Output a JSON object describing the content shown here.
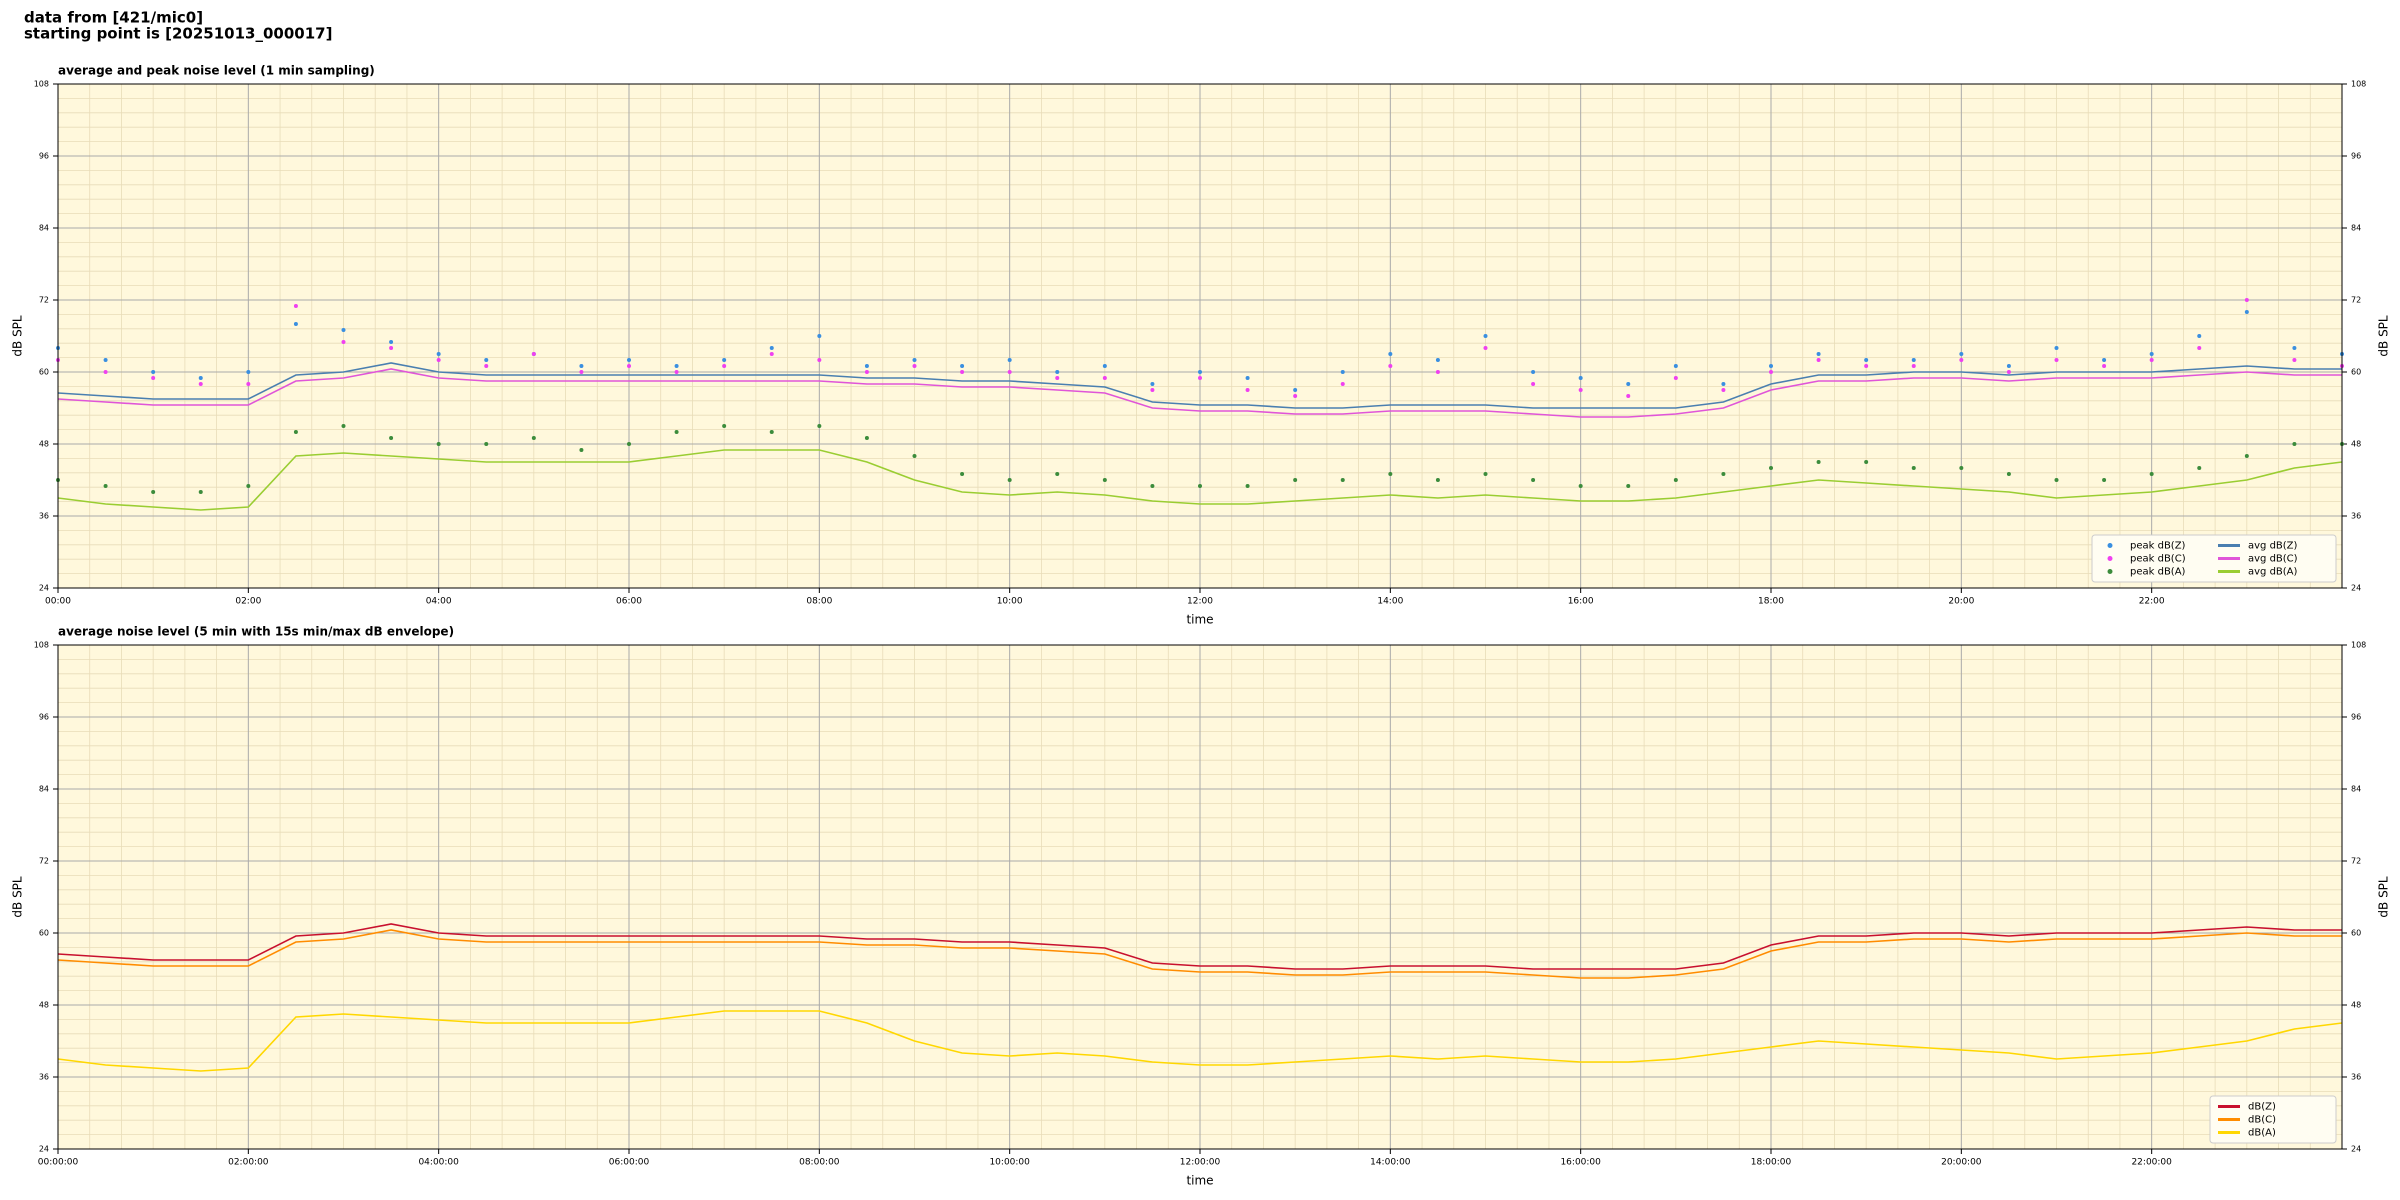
{
  "header": {
    "line1": "data from [421/mic0]",
    "line2": "starting point is [20251013_000017]"
  },
  "chart_data": [
    {
      "type": "line",
      "title": "average and peak noise level (1 min sampling)",
      "xlabel": "time",
      "ylabel": "dB SPL",
      "ylabel_right": "dB SPL",
      "xlim": [
        0,
        24
      ],
      "ylim": [
        24,
        108
      ],
      "yticks": [
        24,
        36,
        48,
        60,
        72,
        84,
        96,
        108
      ],
      "xticks": [
        {
          "value": 0,
          "label": "00:00"
        },
        {
          "value": 2,
          "label": "02:00"
        },
        {
          "value": 4,
          "label": "04:00"
        },
        {
          "value": 6,
          "label": "06:00"
        },
        {
          "value": 8,
          "label": "08:00"
        },
        {
          "value": 10,
          "label": "10:00"
        },
        {
          "value": 12,
          "label": "12:00"
        },
        {
          "value": 14,
          "label": "14:00"
        },
        {
          "value": 16,
          "label": "16:00"
        },
        {
          "value": 18,
          "label": "18:00"
        },
        {
          "value": 20,
          "label": "20:00"
        },
        {
          "value": 22,
          "label": "22:00"
        }
      ],
      "grid": true,
      "legend": "lower right",
      "background": "#fff8dc",
      "x": [
        0,
        0.5,
        1,
        1.5,
        2,
        2.5,
        3,
        3.5,
        4,
        4.5,
        5,
        5.5,
        6,
        6.5,
        7,
        7.5,
        8,
        8.5,
        9,
        9.5,
        10,
        10.5,
        11,
        11.5,
        12,
        12.5,
        13,
        13.5,
        14,
        14.5,
        15,
        15.5,
        16,
        16.5,
        17,
        17.5,
        18,
        18.5,
        19,
        19.5,
        20,
        20.5,
        21,
        21.5,
        22,
        22.5,
        23,
        23.5,
        24
      ],
      "series": [
        {
          "name": "peak dB(Z)",
          "style": "markers",
          "color": "#3a8fe0",
          "values": [
            64,
            62,
            60,
            59,
            60,
            68,
            67,
            65,
            63,
            62,
            63,
            61,
            62,
            61,
            62,
            64,
            66,
            61,
            62,
            61,
            62,
            60,
            61,
            58,
            60,
            59,
            57,
            60,
            63,
            62,
            66,
            60,
            59,
            58,
            61,
            58,
            61,
            63,
            62,
            62,
            63,
            61,
            64,
            62,
            63,
            66,
            70,
            64,
            63
          ]
        },
        {
          "name": "peak dB(C)",
          "style": "markers",
          "color": "#f040f0",
          "values": [
            62,
            60,
            59,
            58,
            58,
            71,
            65,
            64,
            62,
            61,
            63,
            60,
            61,
            60,
            61,
            63,
            62,
            60,
            61,
            60,
            60,
            59,
            59,
            57,
            59,
            57,
            56,
            58,
            61,
            60,
            64,
            58,
            57,
            56,
            59,
            57,
            60,
            62,
            61,
            61,
            62,
            60,
            62,
            61,
            62,
            64,
            72,
            62,
            61
          ]
        },
        {
          "name": "peak dB(A)",
          "style": "markers",
          "color": "#3c8c3c",
          "values": [
            42,
            41,
            40,
            40,
            41,
            50,
            51,
            49,
            48,
            48,
            49,
            47,
            48,
            50,
            51,
            50,
            51,
            49,
            46,
            43,
            42,
            43,
            42,
            41,
            41,
            41,
            42,
            42,
            43,
            42,
            43,
            42,
            41,
            41,
            42,
            43,
            44,
            45,
            45,
            44,
            44,
            43,
            42,
            42,
            43,
            44,
            46,
            48,
            48
          ]
        },
        {
          "name": "avg dB(Z)",
          "style": "line",
          "color": "#4a7fb0",
          "values": [
            56.5,
            56,
            55.5,
            55.5,
            55.5,
            59.5,
            60,
            61.5,
            60,
            59.5,
            59.5,
            59.5,
            59.5,
            59.5,
            59.5,
            59.5,
            59.5,
            59,
            59,
            58.5,
            58.5,
            58,
            57.5,
            55,
            54.5,
            54.5,
            54,
            54,
            54.5,
            54.5,
            54.5,
            54,
            54,
            54,
            54,
            55,
            58,
            59.5,
            59.5,
            60,
            60,
            59.5,
            60,
            60,
            60,
            60.5,
            61,
            60.5,
            60.5
          ]
        },
        {
          "name": "avg dB(C)",
          "style": "line",
          "color": "#e055d8",
          "values": [
            55.5,
            55,
            54.5,
            54.5,
            54.5,
            58.5,
            59,
            60.5,
            59,
            58.5,
            58.5,
            58.5,
            58.5,
            58.5,
            58.5,
            58.5,
            58.5,
            58,
            58,
            57.5,
            57.5,
            57,
            56.5,
            54,
            53.5,
            53.5,
            53,
            53,
            53.5,
            53.5,
            53.5,
            53,
            52.5,
            52.5,
            53,
            54,
            57,
            58.5,
            58.5,
            59,
            59,
            58.5,
            59,
            59,
            59,
            59.5,
            60,
            59.5,
            59.5
          ]
        },
        {
          "name": "avg dB(A)",
          "style": "line",
          "color": "#9acd32",
          "values": [
            39,
            38,
            37.5,
            37,
            37.5,
            46,
            46.5,
            46,
            45.5,
            45,
            45,
            45,
            45,
            46,
            47,
            47,
            47,
            45,
            42,
            40,
            39.5,
            40,
            39.5,
            38.5,
            38,
            38,
            38.5,
            39,
            39.5,
            39,
            39.5,
            39,
            38.5,
            38.5,
            39,
            40,
            41,
            42,
            41.5,
            41,
            40.5,
            40,
            39,
            39.5,
            40,
            41,
            42,
            44,
            45
          ]
        }
      ]
    },
    {
      "type": "line",
      "title": "average noise level (5 min with 15s min/max dB envelope)",
      "xlabel": "time",
      "ylabel": "dB SPL",
      "ylabel_right": "dB SPL",
      "xlim": [
        0,
        24
      ],
      "ylim": [
        24,
        108
      ],
      "yticks": [
        24,
        36,
        48,
        60,
        72,
        84,
        96,
        108
      ],
      "xticks": [
        {
          "value": 0,
          "label": "00:00:00"
        },
        {
          "value": 2,
          "label": "02:00:00"
        },
        {
          "value": 4,
          "label": "04:00:00"
        },
        {
          "value": 6,
          "label": "06:00:00"
        },
        {
          "value": 8,
          "label": "08:00:00"
        },
        {
          "value": 10,
          "label": "10:00:00"
        },
        {
          "value": 12,
          "label": "12:00:00"
        },
        {
          "value": 14,
          "label": "14:00:00"
        },
        {
          "value": 16,
          "label": "16:00:00"
        },
        {
          "value": 18,
          "label": "18:00:00"
        },
        {
          "value": 20,
          "label": "20:00:00"
        },
        {
          "value": 22,
          "label": "22:00:00"
        }
      ],
      "grid": true,
      "legend": "lower right",
      "background": "#fff8dc",
      "x": [
        0,
        0.5,
        1,
        1.5,
        2,
        2.5,
        3,
        3.5,
        4,
        4.5,
        5,
        5.5,
        6,
        6.5,
        7,
        7.5,
        8,
        8.5,
        9,
        9.5,
        10,
        10.5,
        11,
        11.5,
        12,
        12.5,
        13,
        13.5,
        14,
        14.5,
        15,
        15.5,
        16,
        16.5,
        17,
        17.5,
        18,
        18.5,
        19,
        19.5,
        20,
        20.5,
        21,
        21.5,
        22,
        22.5,
        23,
        23.5,
        24
      ],
      "series": [
        {
          "name": "dB(Z)",
          "style": "line",
          "color": "#c8102e",
          "values": [
            56.5,
            56,
            55.5,
            55.5,
            55.5,
            59.5,
            60,
            61.5,
            60,
            59.5,
            59.5,
            59.5,
            59.5,
            59.5,
            59.5,
            59.5,
            59.5,
            59,
            59,
            58.5,
            58.5,
            58,
            57.5,
            55,
            54.5,
            54.5,
            54,
            54,
            54.5,
            54.5,
            54.5,
            54,
            54,
            54,
            54,
            55,
            58,
            59.5,
            59.5,
            60,
            60,
            59.5,
            60,
            60,
            60,
            60.5,
            61,
            60.5,
            60.5
          ]
        },
        {
          "name": "dB(C)",
          "style": "line",
          "color": "#ff8c00",
          "values": [
            55.5,
            55,
            54.5,
            54.5,
            54.5,
            58.5,
            59,
            60.5,
            59,
            58.5,
            58.5,
            58.5,
            58.5,
            58.5,
            58.5,
            58.5,
            58.5,
            58,
            58,
            57.5,
            57.5,
            57,
            56.5,
            54,
            53.5,
            53.5,
            53,
            53,
            53.5,
            53.5,
            53.5,
            53,
            52.5,
            52.5,
            53,
            54,
            57,
            58.5,
            58.5,
            59,
            59,
            58.5,
            59,
            59,
            59,
            59.5,
            60,
            59.5,
            59.5
          ]
        },
        {
          "name": "dB(A)",
          "style": "line",
          "color": "#ffd700",
          "values": [
            39,
            38,
            37.5,
            37,
            37.5,
            46,
            46.5,
            46,
            45.5,
            45,
            45,
            45,
            45,
            46,
            47,
            47,
            47,
            45,
            42,
            40,
            39.5,
            40,
            39.5,
            38.5,
            38,
            38,
            38.5,
            39,
            39.5,
            39,
            39.5,
            39,
            38.5,
            38.5,
            39,
            40,
            41,
            42,
            41.5,
            41,
            40.5,
            40,
            39,
            39.5,
            40,
            41,
            42,
            44,
            45
          ]
        }
      ]
    }
  ]
}
